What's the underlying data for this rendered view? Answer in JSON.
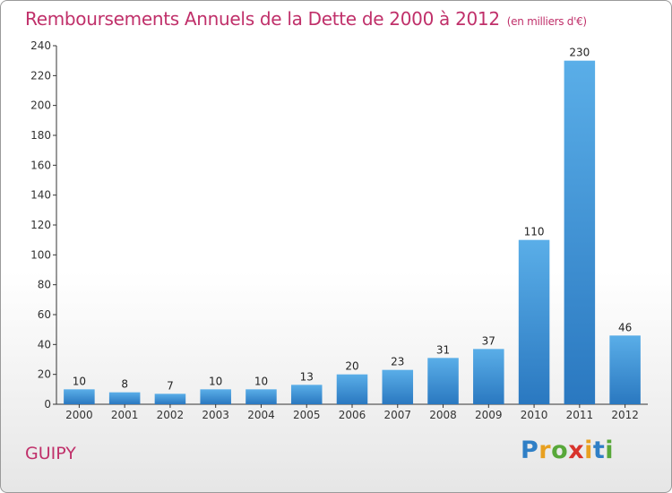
{
  "chart_data": {
    "type": "bar",
    "title": "Remboursements Annuels de la Dette de 2000 à 2012",
    "unit_label": "(en milliers d'€)",
    "categories": [
      "2000",
      "2001",
      "2002",
      "2003",
      "2004",
      "2005",
      "2006",
      "2007",
      "2008",
      "2009",
      "2010",
      "2011",
      "2012"
    ],
    "values": [
      10,
      8,
      7,
      10,
      10,
      13,
      20,
      23,
      31,
      37,
      110,
      230,
      46
    ],
    "ylim": [
      0,
      240
    ],
    "yticks": [
      0,
      20,
      40,
      60,
      80,
      100,
      120,
      140,
      160,
      180,
      200,
      220,
      240
    ],
    "grid": false,
    "bar_color_light": "#5aaee8",
    "bar_color_dark": "#2a78c0"
  },
  "footer": {
    "commune": "GUIPY",
    "logo_letters": [
      "P",
      "r",
      "o",
      "x",
      "i",
      "t",
      "i"
    ],
    "logo_colors": [
      "#2f7fc6",
      "#e8a020",
      "#58a83a",
      "#d8332c",
      "#e8a020",
      "#2f7fc6",
      "#58a83a"
    ]
  },
  "colors": {
    "title": "#c0306a",
    "axis": "#333333"
  }
}
